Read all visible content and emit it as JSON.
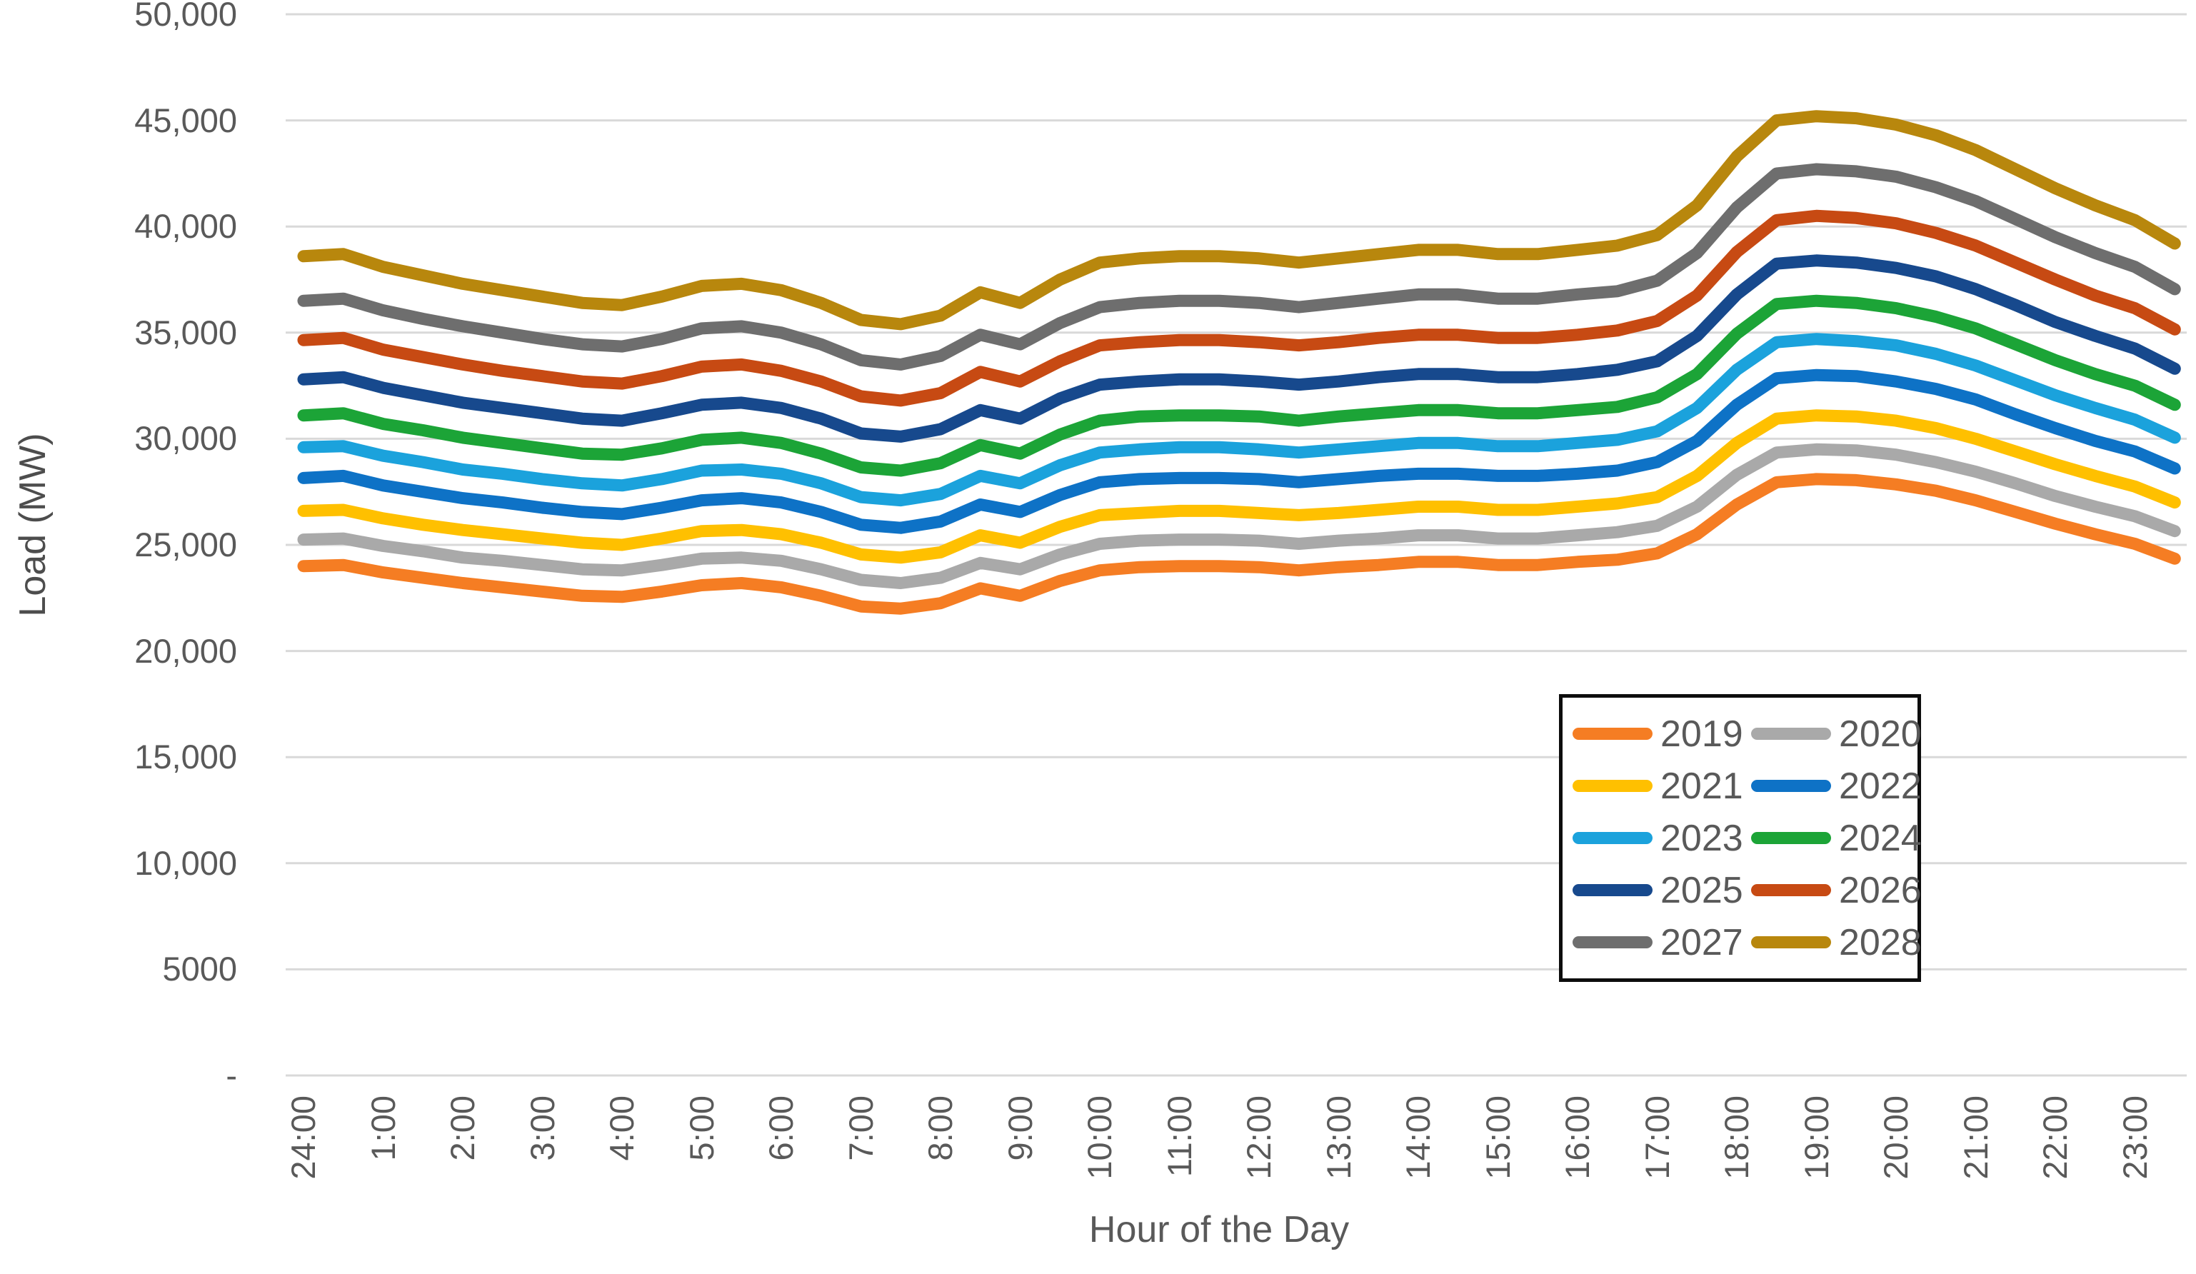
{
  "chart_data": {
    "type": "line",
    "title": "",
    "xlabel": "Hour of the Day",
    "ylabel": "Load (MW)",
    "ylim": [
      0,
      50000
    ],
    "ytick_step": 5000,
    "ytick_labels_bottom_to_top": [
      "-",
      "5000",
      "10,000",
      "15,000",
      "20,000",
      "25,000",
      "30,000",
      "35,000",
      "40,000",
      "45,000",
      "50,000"
    ],
    "x_tick_labels": [
      "24:00",
      "1:00",
      "2:00",
      "3:00",
      "4:00",
      "5:00",
      "6:00",
      "7:00",
      "8:00",
      "9:00",
      "10:00",
      "11:00",
      "12:00",
      "13:00",
      "14:00",
      "15:00",
      "16:00",
      "17:00",
      "18:00",
      "19:00",
      "20:00",
      "21:00",
      "22:00",
      "23:00"
    ],
    "points_per_hour": 2,
    "grid": "horizontal",
    "gridline_color": "#d9d9d9",
    "text_color": "#595959",
    "legend_position": "inside-lower-right",
    "legend_columns": 2,
    "series": [
      {
        "name": "2019",
        "color": "#F57D23",
        "values": [
          24000,
          24050,
          23700,
          23450,
          23200,
          23000,
          22800,
          22600,
          22550,
          22800,
          23100,
          23200,
          23000,
          22600,
          22100,
          22000,
          22250,
          22950,
          22600,
          23300,
          23800,
          23950,
          24000,
          24000,
          23950,
          23800,
          23950,
          24050,
          24200,
          24200,
          24050,
          24050,
          24200,
          24300,
          24600,
          25500,
          26900,
          27950,
          28100,
          28050,
          27850,
          27550,
          27100,
          26550,
          26000,
          25500,
          25050,
          24350
        ]
      },
      {
        "name": "2020",
        "color": "#A9A9A9",
        "values": [
          25250,
          25300,
          24950,
          24700,
          24400,
          24250,
          24050,
          23850,
          23800,
          24050,
          24350,
          24400,
          24250,
          23850,
          23350,
          23200,
          23450,
          24150,
          23850,
          24550,
          25050,
          25200,
          25250,
          25250,
          25200,
          25050,
          25200,
          25300,
          25450,
          25450,
          25300,
          25300,
          25450,
          25600,
          25900,
          26800,
          28300,
          29350,
          29500,
          29450,
          29250,
          28900,
          28450,
          27900,
          27300,
          26800,
          26350,
          25650
        ]
      },
      {
        "name": "2021",
        "color": "#FFC000",
        "values": [
          26600,
          26650,
          26250,
          25950,
          25700,
          25500,
          25300,
          25100,
          25000,
          25300,
          25650,
          25700,
          25500,
          25100,
          24550,
          24400,
          24650,
          25450,
          25100,
          25850,
          26400,
          26500,
          26600,
          26600,
          26500,
          26400,
          26500,
          26650,
          26800,
          26800,
          26650,
          26650,
          26800,
          26950,
          27250,
          28250,
          29800,
          30950,
          31100,
          31050,
          30850,
          30500,
          30000,
          29400,
          28800,
          28250,
          27750,
          27000
        ]
      },
      {
        "name": "2022",
        "color": "#0E72C6",
        "values": [
          28150,
          28250,
          27800,
          27500,
          27200,
          27000,
          26750,
          26550,
          26450,
          26750,
          27100,
          27200,
          27000,
          26550,
          25950,
          25800,
          26100,
          26900,
          26550,
          27350,
          27950,
          28100,
          28150,
          28150,
          28100,
          27950,
          28100,
          28250,
          28350,
          28350,
          28250,
          28250,
          28350,
          28500,
          28900,
          29900,
          31600,
          32850,
          33000,
          32950,
          32700,
          32350,
          31850,
          31150,
          30500,
          29900,
          29400,
          28600
        ]
      },
      {
        "name": "2023",
        "color": "#1BA2DC",
        "values": [
          29600,
          29650,
          29200,
          28900,
          28550,
          28350,
          28100,
          27900,
          27800,
          28100,
          28500,
          28550,
          28350,
          27900,
          27250,
          27100,
          27400,
          28250,
          27900,
          28750,
          29350,
          29500,
          29600,
          29600,
          29500,
          29350,
          29500,
          29650,
          29800,
          29800,
          29650,
          29650,
          29800,
          29950,
          30350,
          31450,
          33250,
          34550,
          34700,
          34600,
          34400,
          34000,
          33450,
          32750,
          32050,
          31450,
          30900,
          30050
        ]
      },
      {
        "name": "2024",
        "color": "#1CA437",
        "values": [
          31100,
          31200,
          30700,
          30400,
          30050,
          29800,
          29550,
          29300,
          29250,
          29550,
          29950,
          30050,
          29800,
          29300,
          28650,
          28500,
          28850,
          29700,
          29300,
          30200,
          30850,
          31050,
          31100,
          31100,
          31050,
          30850,
          31050,
          31200,
          31350,
          31350,
          31200,
          31200,
          31350,
          31500,
          31950,
          33050,
          34950,
          36350,
          36500,
          36400,
          36150,
          35750,
          35200,
          34450,
          33700,
          33050,
          32500,
          31600
        ]
      },
      {
        "name": "2025",
        "color": "#17498D",
        "values": [
          32800,
          32900,
          32400,
          32050,
          31700,
          31450,
          31200,
          30950,
          30850,
          31200,
          31600,
          31700,
          31450,
          30950,
          30250,
          30100,
          30450,
          31350,
          30950,
          31900,
          32550,
          32700,
          32800,
          32800,
          32700,
          32550,
          32700,
          32900,
          33050,
          33050,
          32900,
          32900,
          33050,
          33250,
          33650,
          34850,
          36800,
          38250,
          38400,
          38300,
          38050,
          37650,
          37050,
          36300,
          35500,
          34850,
          34250,
          33300
        ]
      },
      {
        "name": "2026",
        "color": "#C74A13",
        "values": [
          34650,
          34750,
          34200,
          33850,
          33500,
          33200,
          32950,
          32700,
          32600,
          32950,
          33400,
          33500,
          33200,
          32700,
          32000,
          31800,
          32150,
          33150,
          32700,
          33650,
          34400,
          34550,
          34650,
          34650,
          34550,
          34400,
          34550,
          34750,
          34900,
          34900,
          34750,
          34750,
          34900,
          35100,
          35550,
          36750,
          38800,
          40300,
          40500,
          40400,
          40150,
          39700,
          39100,
          38300,
          37500,
          36750,
          36150,
          35150
        ]
      },
      {
        "name": "2027",
        "color": "#6E6E6E",
        "values": [
          36500,
          36600,
          36050,
          35650,
          35300,
          35000,
          34700,
          34450,
          34350,
          34700,
          35200,
          35300,
          35000,
          34450,
          33700,
          33500,
          33900,
          34900,
          34450,
          35450,
          36200,
          36400,
          36500,
          36500,
          36400,
          36200,
          36400,
          36600,
          36800,
          36800,
          36600,
          36600,
          36800,
          36950,
          37450,
          38750,
          40900,
          42500,
          42700,
          42600,
          42350,
          41850,
          41200,
          40350,
          39500,
          38750,
          38100,
          37050
        ]
      },
      {
        "name": "2028",
        "color": "#B8870D",
        "values": [
          38600,
          38700,
          38100,
          37700,
          37300,
          37000,
          36700,
          36400,
          36300,
          36700,
          37200,
          37300,
          37000,
          36400,
          35600,
          35400,
          35800,
          36900,
          36400,
          37500,
          38300,
          38500,
          38600,
          38600,
          38500,
          38300,
          38500,
          38700,
          38900,
          38900,
          38700,
          38700,
          38900,
          39100,
          39600,
          41000,
          43300,
          45000,
          45200,
          45100,
          44800,
          44300,
          43600,
          42700,
          41800,
          41000,
          40300,
          39200
        ]
      }
    ],
    "legend_rows": [
      [
        "2019",
        "2020"
      ],
      [
        "2021",
        "2022"
      ],
      [
        "2023",
        "2024"
      ],
      [
        "2025",
        "2026"
      ],
      [
        "2027",
        "2028"
      ]
    ]
  }
}
